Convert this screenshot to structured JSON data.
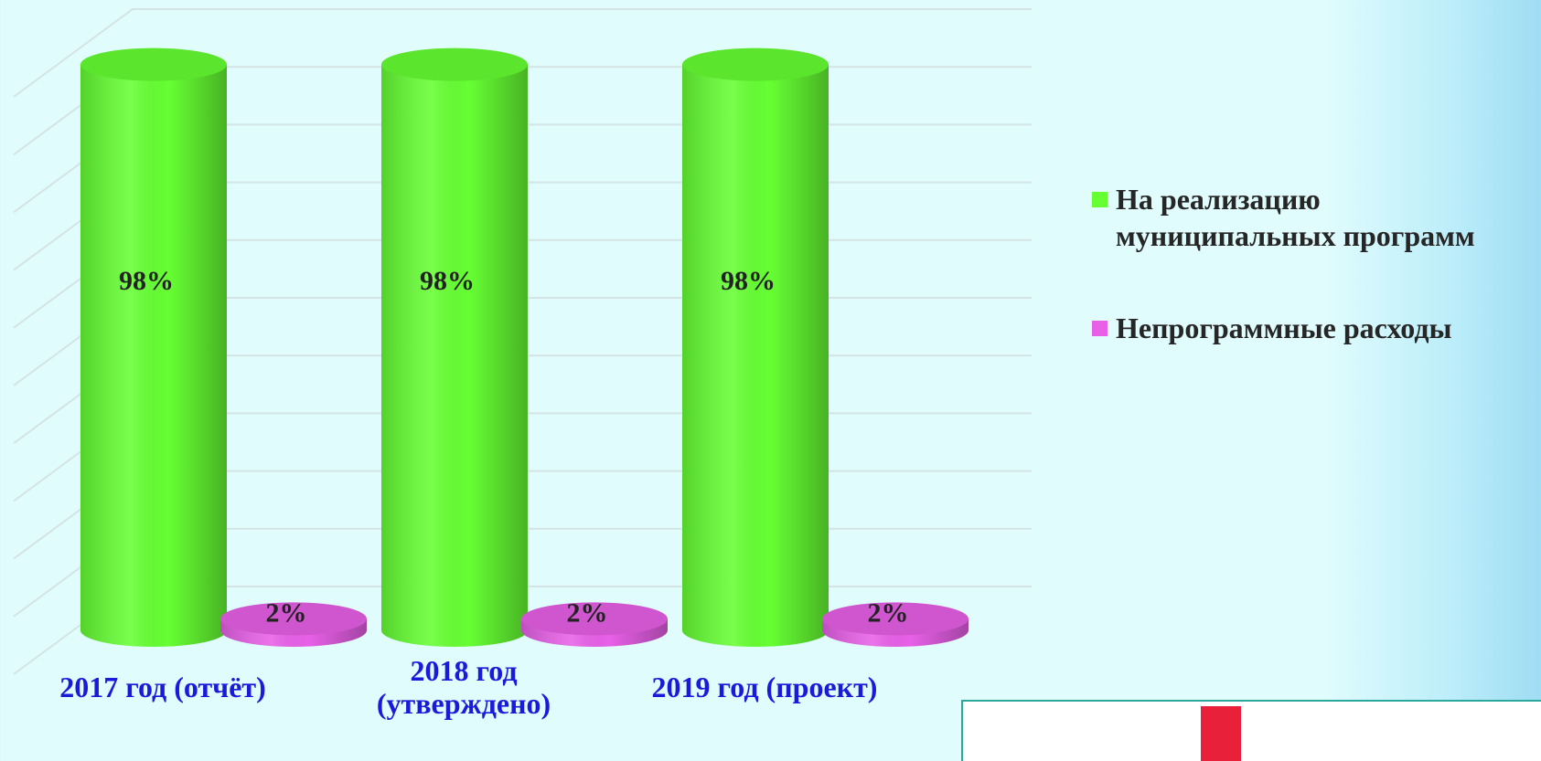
{
  "chart_data": {
    "type": "bar3d",
    "categories": [
      "2017 год (отчёт)",
      "2018 год (утверждено)",
      "2019 год (проект)"
    ],
    "series": [
      {
        "name": "На реализацию муниципальных программ",
        "color": "#66ff33",
        "values": [
          98,
          98,
          98
        ],
        "value_labels": [
          "98%",
          "98%",
          "98%"
        ]
      },
      {
        "name": "Непрограммные расходы",
        "color": "#e860e8",
        "values": [
          2,
          2,
          2
        ],
        "value_labels": [
          "2%",
          "2%",
          "2%"
        ]
      }
    ],
    "ylim": [
      0,
      100
    ],
    "yticks": [
      0,
      10,
      20,
      30,
      40,
      50,
      60,
      70,
      80,
      90,
      100
    ],
    "grid": true,
    "legend": "right"
  }
}
